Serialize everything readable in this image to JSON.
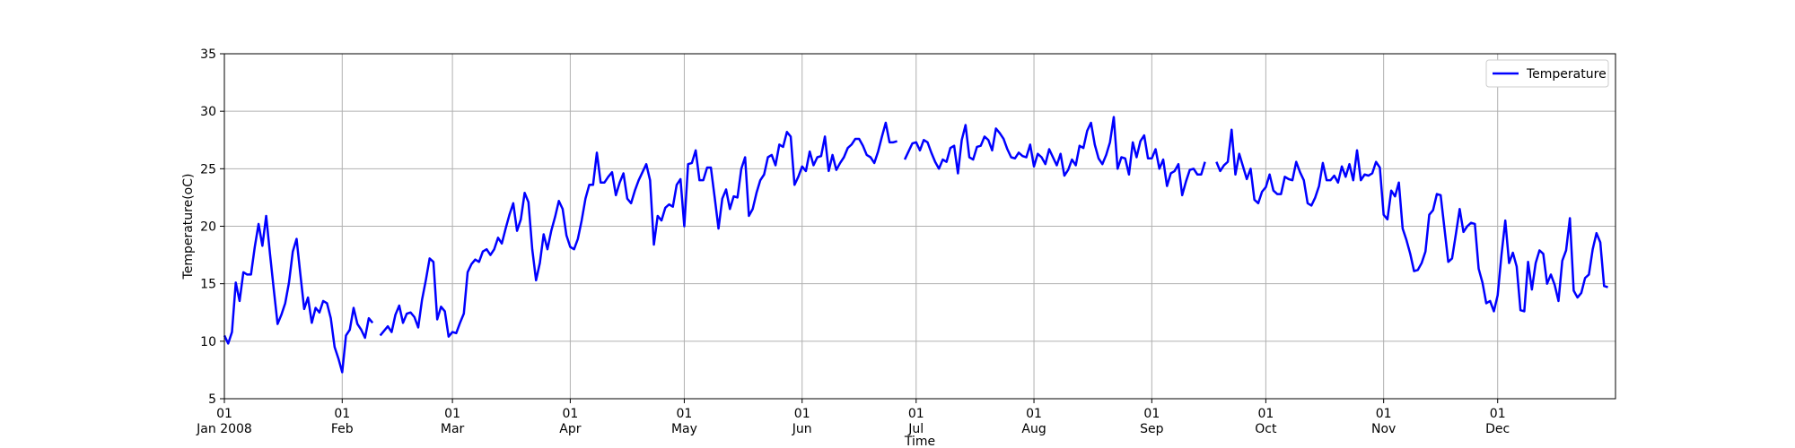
{
  "chart_data": {
    "type": "line",
    "title": "",
    "xlabel": "Time",
    "ylabel": "Temperature(oC)",
    "ylim": [
      5,
      35
    ],
    "grid": true,
    "legend": {
      "placement": "top-right"
    },
    "yticks": [
      5,
      10,
      15,
      20,
      25,
      30,
      35
    ],
    "xticks": [
      {
        "day": 1,
        "line1": "01",
        "line2": "Jan 2008"
      },
      {
        "day": 32,
        "line1": "01",
        "line2": "Feb"
      },
      {
        "day": 61,
        "line1": "01",
        "line2": "Mar"
      },
      {
        "day": 92,
        "line1": "01",
        "line2": "Apr"
      },
      {
        "day": 122,
        "line1": "01",
        "line2": "May"
      },
      {
        "day": 153,
        "line1": "01",
        "line2": "Jun"
      },
      {
        "day": 183,
        "line1": "01",
        "line2": "Jul"
      },
      {
        "day": 214,
        "line1": "01",
        "line2": "Aug"
      },
      {
        "day": 245,
        "line1": "01",
        "line2": "Sep"
      },
      {
        "day": 275,
        "line1": "01",
        "line2": "Oct"
      },
      {
        "day": 306,
        "line1": "01",
        "line2": "Nov"
      },
      {
        "day": 336,
        "line1": "01",
        "line2": "Dec"
      }
    ],
    "xlim": [
      1,
      367
    ],
    "series": [
      {
        "name": "Temperature",
        "color": "#0000ff",
        "segments": [
          {
            "start_day": 1,
            "values": [
              10.5,
              9.8,
              10.8,
              15.1,
              13.5,
              16.0,
              15.8,
              15.8,
              18.2,
              20.2,
              18.3,
              20.9,
              17.6,
              14.5,
              11.5,
              12.3,
              13.3,
              15.1,
              17.8,
              18.9,
              15.8,
              12.8,
              13.8,
              11.6,
              12.9,
              12.5,
              13.5,
              13.3,
              12.0,
              9.5,
              8.5,
              7.3,
              10.5,
              11.0,
              12.9,
              11.5,
              11.0,
              10.3,
              12.0,
              11.6
            ]
          },
          {
            "start_day": 42,
            "values": [
              10.5,
              10.9,
              11.3,
              10.8,
              12.3,
              13.1,
              11.6,
              12.4,
              12.5,
              12.1,
              11.2,
              13.6,
              15.3,
              17.2,
              16.9,
              11.9,
              13.0,
              12.6,
              10.4,
              10.8,
              10.7,
              11.6,
              12.4,
              16.0,
              16.7,
              17.1,
              16.9,
              17.8,
              18.0,
              17.5,
              18.0,
              19.0,
              18.5,
              19.8,
              21.0,
              22.0,
              19.6,
              20.6,
              22.9,
              22.1,
              18.0,
              15.3,
              16.8,
              19.3,
              18.0,
              19.6,
              20.8,
              22.2,
              21.5,
              19.2,
              18.2,
              18.0,
              18.9,
              20.5,
              22.4,
              23.6,
              23.6,
              26.4,
              23.8,
              23.8,
              24.3,
              24.7,
              22.7,
              23.8,
              24.6,
              22.4,
              22.0,
              23.1,
              24.0,
              24.7,
              25.4,
              24.0,
              18.4,
              20.9,
              20.5,
              21.6,
              21.9,
              21.7,
              23.6,
              24.1,
              20.0,
              25.4,
              25.5,
              26.6,
              24.0,
              24.0,
              25.1,
              25.1,
              22.5,
              19.8,
              22.4,
              23.2,
              21.5,
              22.6,
              22.5,
              25.0,
              26.0,
              20.9,
              21.5,
              22.9,
              24.0,
              24.5,
              26.0,
              26.2,
              25.3,
              27.1,
              26.9,
              28.2,
              27.8,
              23.6,
              24.3,
              25.2,
              24.8,
              26.5,
              25.3,
              26.0,
              26.1,
              27.8,
              24.8,
              26.2,
              24.9,
              25.5,
              26.0,
              26.8,
              27.1,
              27.6,
              27.6,
              27.0,
              26.2,
              26.0,
              25.5,
              26.5,
              27.8,
              29.0,
              27.3,
              27.3,
              27.4
            ]
          },
          {
            "start_day": 180,
            "values": [
              25.8,
              26.5,
              27.2,
              27.3,
              26.6,
              27.5,
              27.3,
              26.4,
              25.6,
              25.0,
              25.8,
              25.6,
              26.8,
              27.0,
              24.6,
              27.5,
              28.8,
              26.0,
              25.8,
              26.9,
              27.0,
              27.8,
              27.5,
              26.6,
              28.5,
              28.1,
              27.6,
              26.7,
              26.0,
              25.9,
              26.4,
              26.1,
              26.0,
              27.1,
              25.2,
              26.3,
              26.0,
              25.4,
              26.7,
              26.0,
              25.3,
              26.3,
              24.4,
              24.9,
              25.8,
              25.3,
              27.0,
              26.8,
              28.3,
              29.0,
              27.1,
              25.9,
              25.4,
              26.2,
              27.3,
              29.5,
              25.0,
              26.0,
              25.9,
              24.5,
              27.3,
              26.0,
              27.4,
              27.9,
              25.9,
              25.9,
              26.7,
              25.0,
              25.8,
              23.5,
              24.6,
              24.8,
              25.4,
              22.7,
              23.9,
              24.9,
              25.0,
              24.5,
              24.5,
              25.6
            ]
          },
          {
            "start_day": 262,
            "values": [
              25.6,
              24.8,
              25.3,
              25.6,
              28.4,
              24.5,
              26.3,
              25.2,
              24.1,
              25.0,
              22.3,
              22.0,
              23.0,
              23.4,
              24.5,
              23.1,
              22.8,
              22.8,
              24.3,
              24.1,
              24.0,
              25.6,
              24.7,
              24.0,
              22.0,
              21.8,
              22.5,
              23.5,
              25.5,
              24.0,
              24.0,
              24.4,
              23.8,
              25.2,
              24.3,
              25.4,
              24.0,
              26.6,
              24.0,
              24.5,
              24.4,
              24.6,
              25.6,
              25.1,
              21.0,
              20.6,
              23.1,
              22.6,
              23.8,
              19.8,
              18.8,
              17.6,
              16.1,
              16.2,
              16.8,
              17.8,
              21.0,
              21.4,
              22.8,
              22.7,
              19.8,
              16.9,
              17.2,
              19.3,
              21.5,
              19.5,
              20.0,
              20.3,
              20.2,
              16.3,
              15.1,
              13.3,
              13.5,
              12.6,
              14.0,
              17.5,
              20.5,
              16.8,
              17.7,
              16.5,
              12.7,
              12.6,
              16.9,
              14.5,
              16.8,
              17.9,
              17.6,
              15.0,
              15.8,
              14.9,
              13.5,
              17.0,
              17.9,
              20.7,
              14.4,
              13.8,
              14.2,
              15.5,
              15.8,
              18.0,
              19.4,
              18.6,
              14.8,
              14.7
            ]
          }
        ]
      }
    ]
  }
}
